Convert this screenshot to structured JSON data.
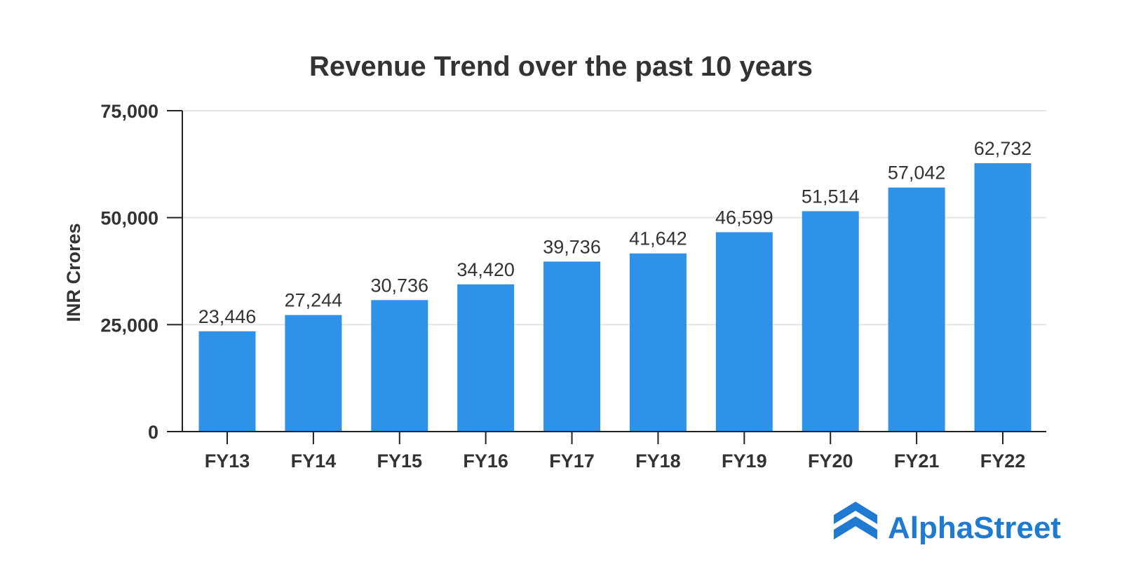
{
  "chart_data": {
    "type": "bar",
    "title": "Revenue Trend over the past 10 years",
    "xlabel": "",
    "ylabel": "INR Crores",
    "categories": [
      "FY13",
      "FY14",
      "FY15",
      "FY16",
      "FY17",
      "FY18",
      "FY19",
      "FY20",
      "FY21",
      "FY22"
    ],
    "values": [
      23446,
      27244,
      30736,
      34420,
      39736,
      41642,
      46599,
      51514,
      57042,
      62732
    ],
    "value_labels": [
      "23,446",
      "27,244",
      "30,736",
      "34,420",
      "39,736",
      "41,642",
      "46,599",
      "51,514",
      "57,042",
      "62,732"
    ],
    "ylim": [
      0,
      75000
    ],
    "yticks": [
      0,
      25000,
      50000,
      75000
    ],
    "ytick_labels": [
      "0",
      "25,000",
      "50,000",
      "75,000"
    ],
    "grid": true,
    "colors": {
      "bar": "#2E93E8",
      "text": "#333333",
      "grid": "#E3E3E3",
      "axis": "#222222"
    }
  },
  "brand": {
    "name": "AlphaStreet",
    "logo_icon": "alphastreet-logo-icon",
    "color": "#1F7BD1"
  }
}
